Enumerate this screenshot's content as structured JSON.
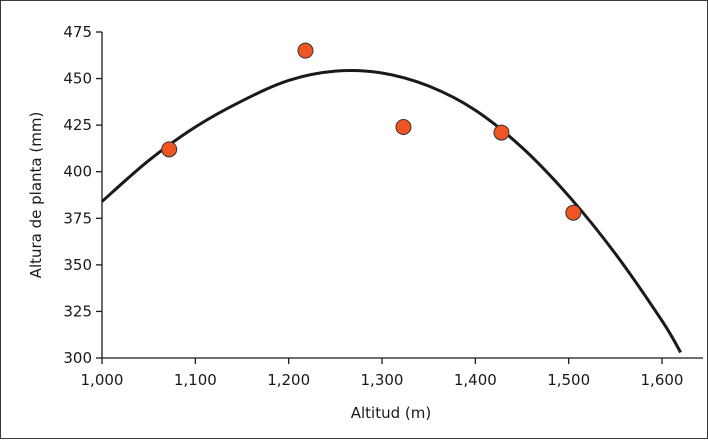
{
  "chart_data": {
    "type": "scatter",
    "title": "",
    "xlabel": "Altitud (m)",
    "ylabel": "Altura de planta (mm)",
    "xlim": [
      1000,
      1650
    ],
    "ylim": [
      300,
      475
    ],
    "x_ticks": [
      1000,
      1100,
      1200,
      1300,
      1400,
      1500,
      1600
    ],
    "y_ticks": [
      300,
      325,
      350,
      375,
      400,
      425,
      450,
      475
    ],
    "x_tick_labels": [
      "1,000",
      "1,100",
      "1,200",
      "1,300",
      "1,400",
      "1,500",
      "1,600"
    ],
    "y_tick_labels": [
      "300",
      "325",
      "350",
      "375",
      "400",
      "425",
      "450",
      "475"
    ],
    "grid": false,
    "points": {
      "x": [
        1072,
        1218,
        1323,
        1428,
        1505
      ],
      "y": [
        412,
        465,
        424,
        421,
        378
      ],
      "color": "#f05423"
    },
    "trendline": {
      "type": "quadratic",
      "x": [
        1000,
        1050,
        1100,
        1150,
        1200,
        1250,
        1300,
        1350,
        1400,
        1450,
        1500,
        1550,
        1600,
        1620
      ],
      "y": [
        384,
        406,
        424,
        438,
        449,
        454,
        453,
        446,
        433,
        413,
        387,
        356,
        320,
        303
      ],
      "color": "#1a1a1a"
    }
  }
}
